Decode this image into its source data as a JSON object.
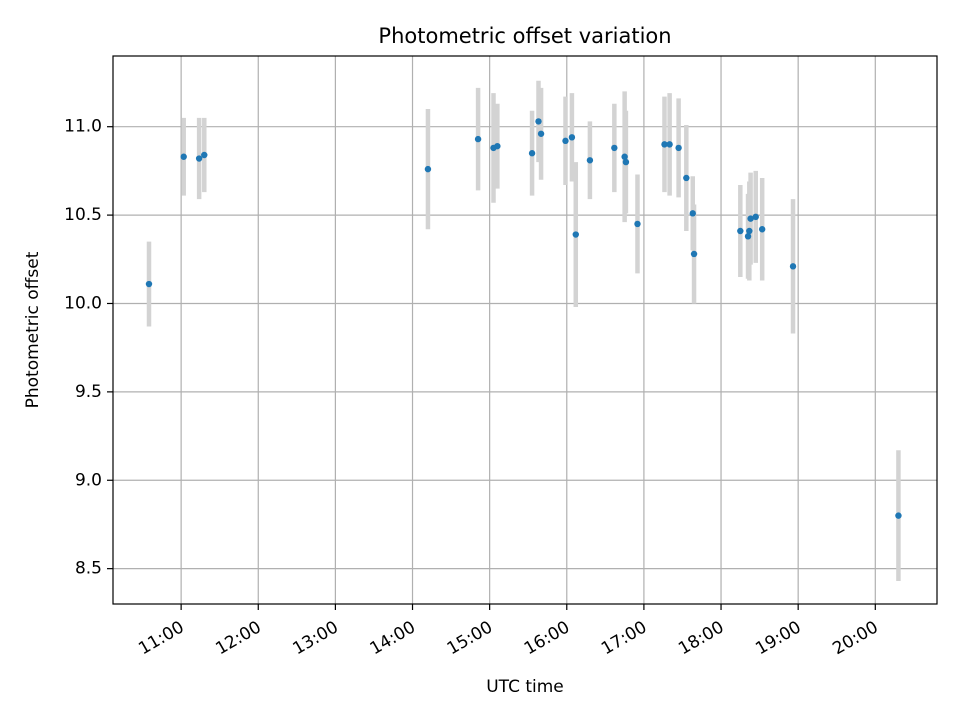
{
  "chart_data": {
    "type": "scatter",
    "title": "Photometric offset variation",
    "xlabel": "UTC time",
    "ylabel": "Photometric offset",
    "x_tick_labels": [
      "11:00",
      "12:00",
      "13:00",
      "14:00",
      "15:00",
      "16:00",
      "17:00",
      "18:00",
      "19:00",
      "20:00"
    ],
    "y_tick_labels": [
      "8.5",
      "9.0",
      "9.5",
      "10.0",
      "10.5",
      "11.0"
    ],
    "xlim": [
      "10:07",
      "20:48"
    ],
    "ylim": [
      8.3,
      11.4
    ],
    "grid": true,
    "point_color": "#1f77b4",
    "errorbar_color": "#d3d3d3",
    "series": [
      {
        "points": [
          {
            "x": "10:35",
            "y": 10.11,
            "err": 0.24
          },
          {
            "x": "11:02",
            "y": 10.83,
            "err": 0.22
          },
          {
            "x": "11:14",
            "y": 10.82,
            "err": 0.23
          },
          {
            "x": "11:18",
            "y": 10.84,
            "err": 0.21
          },
          {
            "x": "14:12",
            "y": 10.76,
            "err": 0.34
          },
          {
            "x": "14:51",
            "y": 10.93,
            "err": 0.29
          },
          {
            "x": "15:03",
            "y": 10.88,
            "err": 0.31
          },
          {
            "x": "15:06",
            "y": 10.89,
            "err": 0.24
          },
          {
            "x": "15:33",
            "y": 10.85,
            "err": 0.24
          },
          {
            "x": "15:38",
            "y": 11.03,
            "err": 0.23
          },
          {
            "x": "15:40",
            "y": 10.96,
            "err": 0.26
          },
          {
            "x": "15:59",
            "y": 10.92,
            "err": 0.25
          },
          {
            "x": "16:04",
            "y": 10.94,
            "err": 0.25
          },
          {
            "x": "16:07",
            "y": 10.39,
            "err": 0.41
          },
          {
            "x": "16:18",
            "y": 10.81,
            "err": 0.22
          },
          {
            "x": "16:37",
            "y": 10.88,
            "err": 0.25
          },
          {
            "x": "16:45",
            "y": 10.83,
            "err": 0.37
          },
          {
            "x": "16:46",
            "y": 10.8,
            "err": 0.29
          },
          {
            "x": "16:55",
            "y": 10.45,
            "err": 0.28
          },
          {
            "x": "17:16",
            "y": 10.9,
            "err": 0.27
          },
          {
            "x": "17:20",
            "y": 10.9,
            "err": 0.29
          },
          {
            "x": "17:27",
            "y": 10.88,
            "err": 0.28
          },
          {
            "x": "17:33",
            "y": 10.71,
            "err": 0.3
          },
          {
            "x": "17:38",
            "y": 10.51,
            "err": 0.21
          },
          {
            "x": "17:39",
            "y": 10.28,
            "err": 0.28
          },
          {
            "x": "18:15",
            "y": 10.41,
            "err": 0.26
          },
          {
            "x": "18:21",
            "y": 10.38,
            "err": 0.24
          },
          {
            "x": "18:22",
            "y": 10.41,
            "err": 0.28
          },
          {
            "x": "18:23",
            "y": 10.48,
            "err": 0.26
          },
          {
            "x": "18:27",
            "y": 10.49,
            "err": 0.26
          },
          {
            "x": "18:32",
            "y": 10.42,
            "err": 0.29
          },
          {
            "x": "18:56",
            "y": 10.21,
            "err": 0.38
          },
          {
            "x": "20:18",
            "y": 8.8,
            "err": 0.37
          }
        ]
      }
    ]
  }
}
